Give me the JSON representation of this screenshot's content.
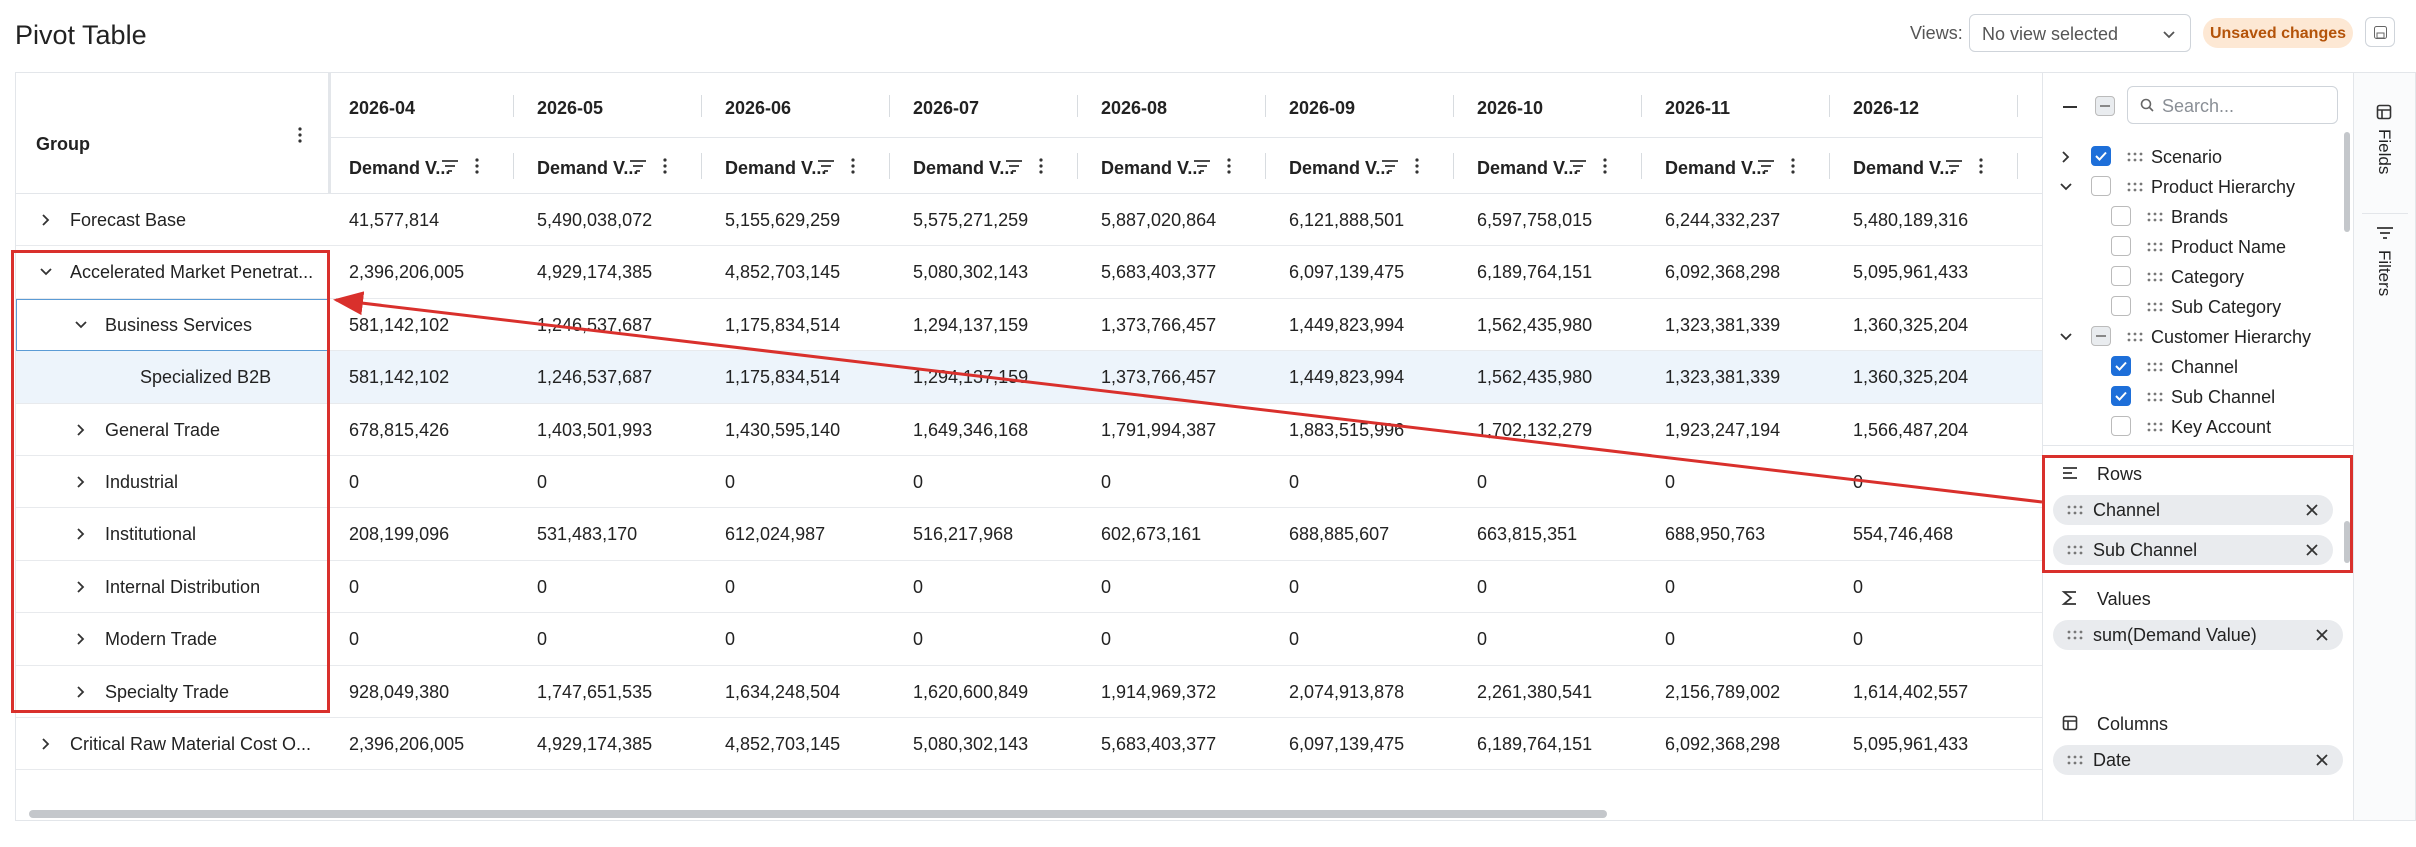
{
  "header": {
    "title": "Pivot Table",
    "views_label": "Views:",
    "view_select": "No view selected",
    "status": "Unsaved changes"
  },
  "table": {
    "group_header": "Group",
    "measure_label": "Demand V...",
    "columns": [
      "2026-04",
      "2026-05",
      "2026-06",
      "2026-07",
      "2026-08",
      "2026-09",
      "2026-10",
      "2026-11",
      "2026-12"
    ],
    "rows": [
      {
        "label": "Forecast Base",
        "level": 0,
        "state": "collapsed",
        "cells": [
          "41,577,814",
          "5,490,038,072",
          "5,155,629,259",
          "5,575,271,259",
          "5,887,020,864",
          "6,121,888,501",
          "6,597,758,015",
          "6,244,332,237",
          "5,480,189,316"
        ]
      },
      {
        "label": "Accelerated Market Penetrat...",
        "level": 0,
        "state": "expanded",
        "cells": [
          "2,396,206,005",
          "4,929,174,385",
          "4,852,703,145",
          "5,080,302,143",
          "5,683,403,377",
          "6,097,139,475",
          "6,189,764,151",
          "6,092,368,298",
          "5,095,961,433"
        ]
      },
      {
        "label": "Business Services",
        "level": 1,
        "state": "expanded",
        "focused": true,
        "cells": [
          "581,142,102",
          "1,246,537,687",
          "1,175,834,514",
          "1,294,137,159",
          "1,373,766,457",
          "1,449,823,994",
          "1,562,435,980",
          "1,323,381,339",
          "1,360,325,204"
        ]
      },
      {
        "label": "Specialized B2B",
        "level": 2,
        "state": "leaf",
        "selected": true,
        "cells": [
          "581,142,102",
          "1,246,537,687",
          "1,175,834,514",
          "1,294,137,159",
          "1,373,766,457",
          "1,449,823,994",
          "1,562,435,980",
          "1,323,381,339",
          "1,360,325,204"
        ]
      },
      {
        "label": "General Trade",
        "level": 1,
        "state": "collapsed",
        "cells": [
          "678,815,426",
          "1,403,501,993",
          "1,430,595,140",
          "1,649,346,168",
          "1,791,994,387",
          "1,883,515,996",
          "1,702,132,279",
          "1,923,247,194",
          "1,566,487,204"
        ]
      },
      {
        "label": "Industrial",
        "level": 1,
        "state": "collapsed",
        "cells": [
          "0",
          "0",
          "0",
          "0",
          "0",
          "0",
          "0",
          "0",
          "0"
        ]
      },
      {
        "label": "Institutional",
        "level": 1,
        "state": "collapsed",
        "cells": [
          "208,199,096",
          "531,483,170",
          "612,024,987",
          "516,217,968",
          "602,673,161",
          "688,885,607",
          "663,815,351",
          "688,950,763",
          "554,746,468"
        ]
      },
      {
        "label": "Internal Distribution",
        "level": 1,
        "state": "collapsed",
        "cells": [
          "0",
          "0",
          "0",
          "0",
          "0",
          "0",
          "0",
          "0",
          "0"
        ]
      },
      {
        "label": "Modern Trade",
        "level": 1,
        "state": "collapsed",
        "cells": [
          "0",
          "0",
          "0",
          "0",
          "0",
          "0",
          "0",
          "0",
          "0"
        ]
      },
      {
        "label": "Specialty Trade",
        "level": 1,
        "state": "collapsed",
        "cells": [
          "928,049,380",
          "1,747,651,535",
          "1,634,248,504",
          "1,620,600,849",
          "1,914,969,372",
          "2,074,913,878",
          "2,261,380,541",
          "2,156,789,002",
          "1,614,402,557"
        ]
      },
      {
        "label": "Critical Raw Material Cost O...",
        "level": 0,
        "state": "collapsed",
        "cells": [
          "2,396,206,005",
          "4,929,174,385",
          "4,852,703,145",
          "5,080,302,143",
          "5,683,403,377",
          "6,097,139,475",
          "6,189,764,151",
          "6,092,368,298",
          "5,095,961,433"
        ]
      }
    ]
  },
  "panel": {
    "search_placeholder": "Search...",
    "fields": [
      {
        "label": "Scenario",
        "level": 0,
        "state": "collapsed",
        "checked": true
      },
      {
        "label": "Product Hierarchy",
        "level": 0,
        "state": "expanded",
        "checked": false
      },
      {
        "label": "Brands",
        "level": 1,
        "checked": false
      },
      {
        "label": "Product Name",
        "level": 1,
        "checked": false
      },
      {
        "label": "Category",
        "level": 1,
        "checked": false
      },
      {
        "label": "Sub Category",
        "level": 1,
        "checked": false
      },
      {
        "label": "Customer Hierarchy",
        "level": 0,
        "state": "expanded",
        "checked": "partial"
      },
      {
        "label": "Channel",
        "level": 1,
        "checked": true
      },
      {
        "label": "Sub Channel",
        "level": 1,
        "checked": true
      },
      {
        "label": "Key Account",
        "level": 1,
        "checked": false
      }
    ],
    "zones": [
      {
        "title": "Rows",
        "chips": [
          "Channel",
          "Sub Channel"
        ]
      },
      {
        "title": "Values",
        "chips": [
          "sum(Demand Value)"
        ]
      },
      {
        "title": "Columns",
        "chips": [
          "Date"
        ]
      }
    ],
    "tabs": [
      "Fields",
      "Filters"
    ]
  }
}
